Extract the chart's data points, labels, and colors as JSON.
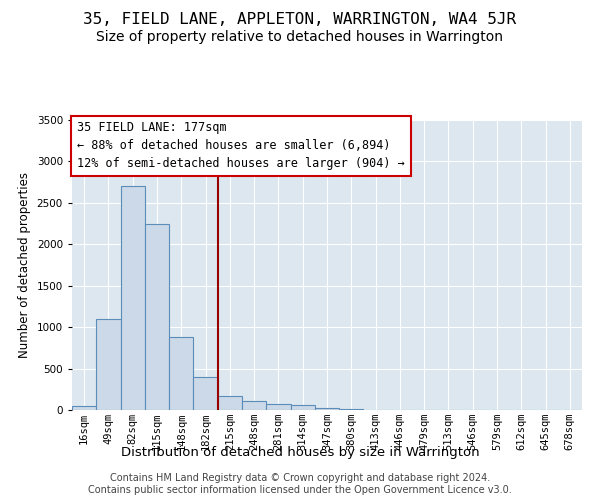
{
  "title": "35, FIELD LANE, APPLETON, WARRINGTON, WA4 5JR",
  "subtitle": "Size of property relative to detached houses in Warrington",
  "xlabel": "Distribution of detached houses by size in Warrington",
  "ylabel": "Number of detached properties",
  "categories": [
    "16sqm",
    "49sqm",
    "82sqm",
    "115sqm",
    "148sqm",
    "182sqm",
    "215sqm",
    "248sqm",
    "281sqm",
    "314sqm",
    "347sqm",
    "380sqm",
    "413sqm",
    "446sqm",
    "479sqm",
    "513sqm",
    "546sqm",
    "579sqm",
    "612sqm",
    "645sqm",
    "678sqm"
  ],
  "values": [
    50,
    1100,
    2700,
    2250,
    880,
    400,
    165,
    110,
    75,
    55,
    30,
    10,
    5,
    2,
    1,
    0,
    0,
    0,
    0,
    0,
    0
  ],
  "bar_color": "#ccd9e8",
  "bar_edge_color": "#5b8db8",
  "background_color": "#dce7f0",
  "vline_x": 5.5,
  "vline_color": "#990000",
  "annotation_text": "35 FIELD LANE: 177sqm\n← 88% of detached houses are smaller (6,894)\n12% of semi-detached houses are larger (904) →",
  "annotation_box_color": "white",
  "annotation_box_edge_color": "#cc0000",
  "ylim": [
    0,
    3500
  ],
  "yticks": [
    0,
    500,
    1000,
    1500,
    2000,
    2500,
    3000,
    3500
  ],
  "footnote": "Contains HM Land Registry data © Crown copyright and database right 2024.\nContains public sector information licensed under the Open Government Licence v3.0.",
  "title_fontsize": 11.5,
  "subtitle_fontsize": 10,
  "xlabel_fontsize": 9.5,
  "ylabel_fontsize": 8.5,
  "tick_fontsize": 7.5,
  "annotation_fontsize": 8.5,
  "footnote_fontsize": 7
}
